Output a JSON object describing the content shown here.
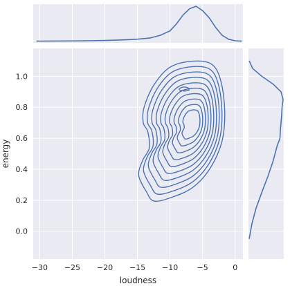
{
  "chart_data": {
    "type": "kde-jointplot",
    "xlabel": "loudness",
    "ylabel": "energy",
    "xlim": [
      -31.0,
      1.2
    ],
    "ylim": [
      -0.18,
      1.18
    ],
    "xticks": [
      -30,
      -25,
      -20,
      -15,
      -10,
      -5,
      0
    ],
    "yticks": [
      0.0,
      0.2,
      0.4,
      0.6,
      0.8,
      1.0
    ],
    "grid": true,
    "colors": {
      "background": "#eaeaf2",
      "line": "#4c72b0",
      "grid": "#ffffff",
      "text": "#262626"
    },
    "contour_levels": 10,
    "joint_density_center": {
      "loudness": -5.5,
      "energy": 0.68
    },
    "marginal_x": {
      "variable": "loudness",
      "x": [
        -30.5,
        -24,
        -20,
        -17,
        -15,
        -13,
        -11.5,
        -10,
        -9,
        -8,
        -7,
        -6,
        -5,
        -4,
        -3,
        -2,
        -1,
        0,
        1
      ],
      "density": [
        0.003,
        0.006,
        0.011,
        0.018,
        0.026,
        0.04,
        0.07,
        0.12,
        0.2,
        0.3,
        0.37,
        0.4,
        0.35,
        0.27,
        0.16,
        0.07,
        0.025,
        0.008,
        0.003
      ]
    },
    "marginal_y": {
      "variable": "energy",
      "y": [
        -0.05,
        0.05,
        0.15,
        0.25,
        0.35,
        0.45,
        0.55,
        0.6,
        0.65,
        0.7,
        0.75,
        0.8,
        0.85,
        0.9,
        0.95,
        1.0,
        1.05,
        1.1
      ],
      "density": [
        0.02,
        0.1,
        0.22,
        0.38,
        0.55,
        0.7,
        0.82,
        0.9,
        0.91,
        0.93,
        0.95,
        0.96,
        0.99,
        0.93,
        0.7,
        0.38,
        0.12,
        0.02
      ]
    }
  }
}
